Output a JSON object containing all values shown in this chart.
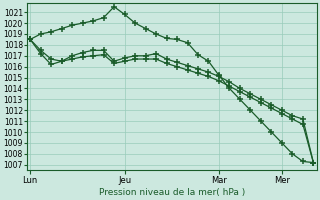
{
  "background_color": "#cce8df",
  "grid_color": "#99ccbb",
  "line_color": "#1a5c2a",
  "xlabel": "Pression niveau de la mer( hPa )",
  "ylim": [
    1006.5,
    1021.8
  ],
  "ytick_min": 1007,
  "ytick_max": 1021,
  "xtick_labels": [
    "Lun",
    "Jeu",
    "Mar",
    "Mer"
  ],
  "n_points": 28,
  "series0": [
    1018.5,
    1019.0,
    1019.2,
    1019.5,
    1019.8,
    1020.0,
    1020.2,
    1020.5,
    1021.5,
    1020.8,
    1020.0,
    1019.5,
    1019.0,
    1018.6,
    1018.5,
    1018.2,
    1017.1,
    1016.5,
    1015.2,
    1014.0,
    1013.0,
    1012.0,
    1011.0,
    1010.0,
    1009.0,
    1008.0,
    1007.3,
    1007.2
  ],
  "series1": [
    1018.5,
    1017.2,
    1016.2,
    1016.5,
    1017.0,
    1017.3,
    1017.5,
    1017.5,
    1016.5,
    1016.8,
    1017.0,
    1017.0,
    1017.2,
    1016.7,
    1016.4,
    1016.1,
    1015.8,
    1015.5,
    1015.1,
    1014.6,
    1014.0,
    1013.5,
    1013.0,
    1012.5,
    1012.0,
    1011.5,
    1011.2,
    1007.2
  ],
  "series2": [
    1018.5,
    1017.5,
    1016.7,
    1016.5,
    1016.7,
    1016.9,
    1017.0,
    1017.1,
    1016.3,
    1016.5,
    1016.7,
    1016.7,
    1016.7,
    1016.3,
    1016.0,
    1015.7,
    1015.4,
    1015.1,
    1014.7,
    1014.2,
    1013.7,
    1013.2,
    1012.7,
    1012.2,
    1011.7,
    1011.2,
    1010.7,
    1007.2
  ],
  "day_positions": [
    0,
    9,
    18,
    24
  ]
}
